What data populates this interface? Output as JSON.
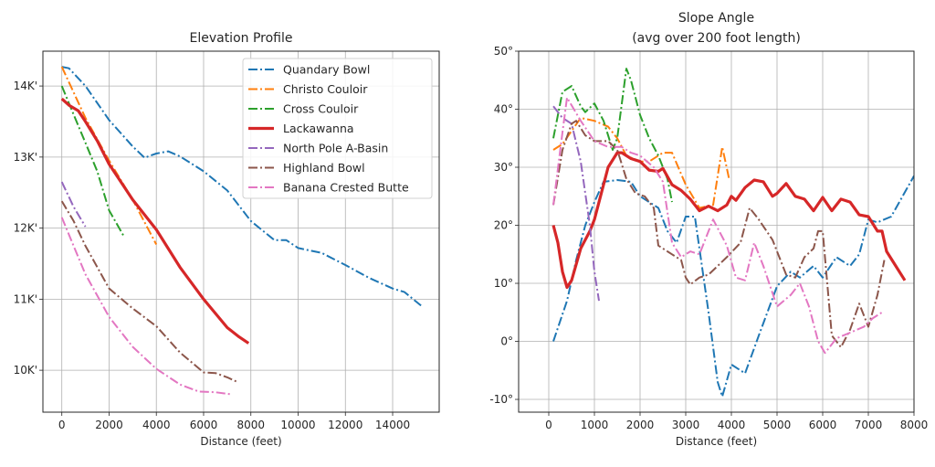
{
  "chart_data": [
    {
      "type": "line",
      "title": "Elevation Profile",
      "xlabel": "Distance (feet)",
      "ylabel": "",
      "xlim": [
        -800,
        15970
      ],
      "ylim": [
        9410,
        14490
      ],
      "xticks": [
        0,
        2000,
        4000,
        6000,
        8000,
        10000,
        12000,
        14000
      ],
      "xtick_labels": [
        "0",
        "2000",
        "4000",
        "6000",
        "8000",
        "10000",
        "12000",
        "14000"
      ],
      "yticks": [
        10000,
        11000,
        12000,
        13000,
        14000
      ],
      "ytick_labels": [
        "10K'",
        "11K'",
        "12K'",
        "13K'",
        "14K'"
      ],
      "grid": true,
      "legend": "top-right",
      "series": [
        {
          "name": "Quandary Bowl",
          "color": "#1f77b4",
          "style": "dashdot",
          "x": [
            0,
            300,
            1000,
            2000,
            3000,
            3500,
            4000,
            4500,
            5000,
            6000,
            7000,
            8000,
            9000,
            9500,
            10000,
            11000,
            12000,
            13000,
            14000,
            14500,
            15200
          ],
          "y": [
            14270,
            14250,
            14000,
            13520,
            13150,
            12990,
            13050,
            13080,
            13010,
            12800,
            12530,
            12100,
            11830,
            11830,
            11720,
            11650,
            11480,
            11300,
            11150,
            11100,
            10910
          ]
        },
        {
          "name": "Christo Couloir",
          "color": "#ff7f0e",
          "style": "dashdot",
          "x": [
            0,
            1000,
            2000,
            3000,
            4000
          ],
          "y": [
            14270,
            13550,
            12950,
            12400,
            11770
          ]
        },
        {
          "name": "Cross Couloir",
          "color": "#2ca02c",
          "style": "dashdot",
          "x": [
            0,
            500,
            1000,
            1500,
            2000,
            2600
          ],
          "y": [
            14000,
            13600,
            13200,
            12800,
            12250,
            11900
          ]
        },
        {
          "name": "Lackawanna",
          "color": "#d62728",
          "style": "solid",
          "x": [
            0,
            300,
            700,
            1000,
            1500,
            2000,
            3000,
            4000,
            5000,
            6000,
            7000,
            7500,
            7900
          ],
          "y": [
            13820,
            13730,
            13650,
            13500,
            13230,
            12900,
            12400,
            11980,
            11450,
            11000,
            10600,
            10470,
            10380
          ]
        },
        {
          "name": "North Pole A-Basin",
          "color": "#9467bd",
          "style": "dashdot",
          "x": [
            0,
            500,
            1000
          ],
          "y": [
            12650,
            12300,
            12020
          ]
        },
        {
          "name": "Highland Bowl",
          "color": "#8c564b",
          "style": "dashdot",
          "x": [
            0,
            500,
            1000,
            2000,
            3000,
            4000,
            5000,
            6000,
            6500,
            7000,
            7400
          ],
          "y": [
            12380,
            12100,
            11750,
            11150,
            10870,
            10620,
            10250,
            9970,
            9960,
            9900,
            9840
          ]
        },
        {
          "name": "Banana Crested Butte",
          "color": "#e377c2",
          "style": "dashdot",
          "x": [
            0,
            500,
            1000,
            2000,
            3000,
            4000,
            5000,
            5800,
            6500,
            7200
          ],
          "y": [
            12150,
            11750,
            11350,
            10750,
            10330,
            10020,
            9800,
            9700,
            9690,
            9660
          ]
        }
      ]
    },
    {
      "type": "line",
      "title": "Slope Angle",
      "subtitle": "(avg over 200 foot length)",
      "xlabel": "Distance (feet)",
      "ylabel": "",
      "xlim": [
        -660,
        8000
      ],
      "ylim": [
        -12.2,
        50
      ],
      "xticks": [
        0,
        1000,
        2000,
        3000,
        4000,
        5000,
        6000,
        7000,
        8000
      ],
      "xtick_labels": [
        "0",
        "1000",
        "2000",
        "3000",
        "4000",
        "5000",
        "6000",
        "7000",
        "8000"
      ],
      "yticks": [
        -10,
        0,
        10,
        20,
        30,
        40,
        50
      ],
      "ytick_labels": [
        "-10°",
        "0°",
        "10°",
        "20°",
        "30°",
        "40°",
        "50°"
      ],
      "grid": true,
      "series": [
        {
          "name": "Quandary Bowl",
          "color": "#1f77b4",
          "style": "dashdot",
          "x": [
            100,
            400,
            600,
            800,
            1000,
            1200,
            1500,
            1800,
            2000,
            2400,
            2600,
            2800,
            3000,
            3200,
            3500,
            3700,
            3800,
            4000,
            4300,
            4600,
            5000,
            5300,
            5500,
            5800,
            6000,
            6300,
            6600,
            6800,
            7000,
            7200,
            7500,
            8000
          ],
          "y": [
            0,
            7,
            14,
            20,
            24,
            27.5,
            27.8,
            27.5,
            25,
            23,
            19,
            17,
            21.5,
            21.5,
            5,
            -7,
            -9.5,
            -4,
            -5.5,
            1,
            9.5,
            12,
            11,
            13,
            11,
            14.5,
            13,
            15,
            21,
            20.5,
            21.5,
            28.5
          ]
        },
        {
          "name": "Christo Couloir",
          "color": "#ff7f0e",
          "style": "dashdot",
          "x": [
            100,
            300,
            700,
            1000,
            1300,
            1500,
            1700,
            2000,
            2200,
            2500,
            2700,
            3000,
            3300,
            3600,
            3800,
            3950
          ],
          "y": [
            33,
            34,
            38.5,
            38,
            37,
            35,
            32,
            31,
            31,
            32.5,
            32.5,
            27,
            23,
            23.5,
            33.5,
            28
          ]
        },
        {
          "name": "Cross Couloir",
          "color": "#2ca02c",
          "style": "dashdot",
          "x": [
            100,
            300,
            500,
            700,
            800,
            1000,
            1200,
            1400,
            1500,
            1700,
            1800,
            2000,
            2200,
            2400,
            2600,
            2700
          ],
          "y": [
            35,
            43,
            44,
            40.5,
            39.5,
            41,
            38,
            33,
            35,
            47,
            45,
            39,
            35,
            32,
            28,
            24
          ]
        },
        {
          "name": "Lackawanna",
          "color": "#d62728",
          "style": "solid",
          "x": [
            100,
            200,
            300,
            400,
            500,
            700,
            900,
            1000,
            1200,
            1300,
            1500,
            1600,
            1800,
            2000,
            2200,
            2400,
            2500,
            2700,
            2900,
            3100,
            3300,
            3500,
            3700,
            3900,
            4000,
            4100,
            4300,
            4500,
            4700,
            4900,
            5000,
            5200,
            5400,
            5600,
            5800,
            6000,
            6200,
            6400,
            6600,
            6800,
            7000,
            7200,
            7300,
            7400,
            7600,
            7800
          ],
          "y": [
            20,
            17,
            12,
            9.3,
            10.5,
            16,
            19,
            21,
            27,
            30,
            32.5,
            32.5,
            31.5,
            31,
            29.5,
            29.3,
            29.8,
            27,
            26,
            24.5,
            22.5,
            23.3,
            22.5,
            23.5,
            25,
            24.3,
            26.5,
            27.8,
            27.5,
            25,
            25.5,
            27.2,
            25,
            24.5,
            22.5,
            24.8,
            22.5,
            24.5,
            24,
            21.8,
            21.5,
            19,
            19,
            15.5,
            13,
            10.5
          ]
        },
        {
          "name": "North Pole A-Basin",
          "color": "#9467bd",
          "style": "dashdot",
          "x": [
            100,
            300,
            500,
            700,
            900,
            1000,
            1100
          ],
          "y": [
            40.5,
            38.5,
            37.5,
            31,
            20,
            12,
            7
          ]
        },
        {
          "name": "Highland Bowl",
          "color": "#8c564b",
          "style": "dashdot",
          "x": [
            100,
            300,
            500,
            600,
            800,
            1000,
            1300,
            1500,
            1700,
            1900,
            2100,
            2300,
            2400,
            2700,
            2900,
            3000,
            3100,
            3300,
            3500,
            3700,
            3900,
            4200,
            4400,
            4600,
            4900,
            5200,
            5400,
            5600,
            5800,
            5900,
            6000,
            6200,
            6400,
            6600,
            6800,
            7000,
            7200,
            7350
          ],
          "y": [
            23.5,
            33,
            37.5,
            38,
            35.5,
            34.5,
            34.5,
            33,
            28,
            25.5,
            25,
            23,
            16.5,
            15,
            14,
            11,
            9.8,
            11,
            11.5,
            13,
            14.5,
            17,
            23,
            21,
            17.5,
            11.5,
            11,
            14.5,
            16,
            19,
            19,
            1,
            -1,
            2,
            6.5,
            2.5,
            8,
            14
          ]
        },
        {
          "name": "Banana Crested Butte",
          "color": "#e377c2",
          "style": "dashdot",
          "x": [
            100,
            300,
            400,
            700,
            1000,
            1300,
            1600,
            1800,
            2000,
            2300,
            2500,
            2700,
            2900,
            3100,
            3300,
            3600,
            3900,
            4100,
            4300,
            4500,
            4700,
            5000,
            5300,
            5500,
            5700,
            5900,
            6050,
            6300,
            6600,
            6900,
            7100,
            7300
          ],
          "y": [
            23.5,
            36,
            42,
            38,
            34.5,
            33.5,
            33.5,
            32.5,
            32,
            30,
            27.5,
            17,
            14.5,
            15.5,
            15,
            21,
            16.5,
            11,
            10.5,
            17,
            13,
            6,
            8,
            10,
            6,
            0,
            -2,
            0.5,
            1.5,
            2.5,
            4,
            5
          ]
        }
      ]
    }
  ]
}
